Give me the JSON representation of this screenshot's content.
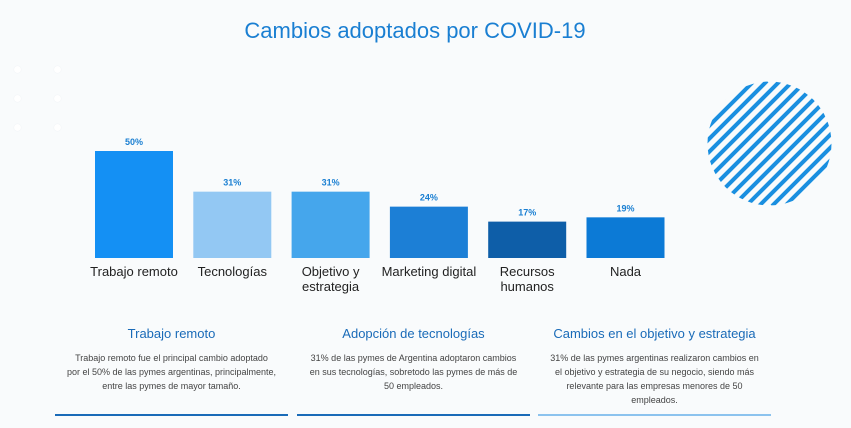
{
  "title": "Cambios adoptados por COVID-19",
  "colors": {
    "title": "#1a7fd2",
    "bars": [
      "#1490f4",
      "#93c8f3",
      "#45a6ec",
      "#1c7fd6",
      "#0e5ea8",
      "#0c7ad6"
    ],
    "value_label": "#1a7fd2",
    "hatch": "#1a8fe0"
  },
  "chart_data": {
    "type": "bar",
    "title": "Cambios adoptados por COVID-19",
    "categories": [
      "Trabajo remoto",
      "Tecnologías",
      "Objetivo y estrategia",
      "Marketing digital",
      "Recursos humanos",
      "Nada"
    ],
    "category_lines": [
      [
        "Trabajo remoto"
      ],
      [
        "Tecnologías"
      ],
      [
        "Objetivo y",
        "estrategia"
      ],
      [
        "Marketing digital"
      ],
      [
        "Recursos humanos"
      ],
      [
        "Nada"
      ]
    ],
    "values": [
      50,
      31,
      31,
      24,
      17,
      19
    ],
    "value_labels": [
      "50%",
      "31%",
      "31%",
      "24%",
      "17%",
      "19%"
    ],
    "unit": "%",
    "xlabel": "",
    "ylabel": "",
    "ylim": [
      0,
      50
    ],
    "grid": false,
    "legend": "none"
  },
  "info_cards": [
    {
      "heading": "Trabajo remoto",
      "lines": [
        "Trabajo remoto fue el principal cambio adoptado",
        "por el 50% de las pymes argentinas, principalmente,",
        "entre las pymes de mayor tamaño."
      ]
    },
    {
      "heading": "Adopción de tecnologías",
      "lines": [
        "31% de las pymes de Argentina adoptaron cambios",
        "en sus tecnologías, sobretodo las pymes de más de",
        "50 empleados."
      ]
    },
    {
      "heading": "Cambios en el objetivo y estrategia",
      "lines": [
        "31% de las pymes argentinas realizaron cambios en",
        "el objetivo y estrategia de su negocio, siendo más",
        "relevante para las empresas menores de 50",
        "empleados."
      ]
    }
  ]
}
